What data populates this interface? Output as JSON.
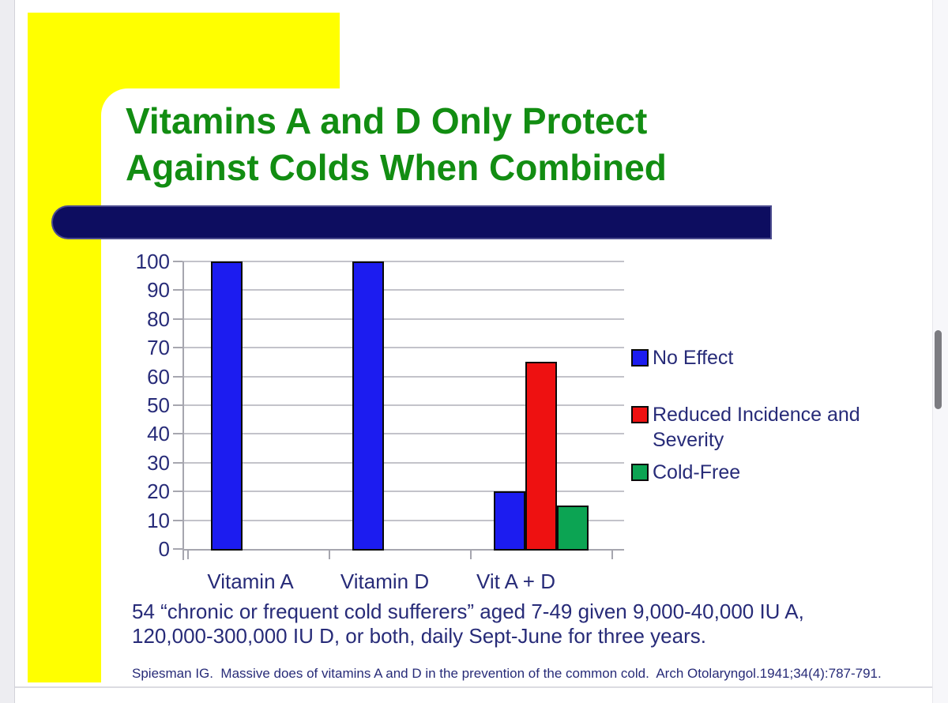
{
  "slide": {
    "title_lines": [
      "Vitamins A and D Only Protect",
      "Against Colds When Combined"
    ],
    "caption_lines": [
      "54 “chronic or frequent cold sufferers” aged 7-49 given 9,000-40,000 IU A,",
      "120,000-300,000 IU D, or both, daily Sept-June for three years."
    ],
    "citation": "Spiesman IG.  Massive does of vitamins A and D in the prevention of the common cold.  Arch Otolaryngol.1941;34(4):787-791."
  },
  "colors": {
    "title_green": "#128d12",
    "navy_text": "#272b78",
    "navy_bar": "#0d0d60",
    "accent_yellow": "#ffff00",
    "bar_blue": "#1c1cf0",
    "bar_red": "#ee1111",
    "bar_green": "#0ca453"
  },
  "chart_data": {
    "type": "bar",
    "categories": [
      "Vitamin A",
      "Vitamin D",
      "Vit A + D"
    ],
    "series": [
      {
        "name": "No Effect",
        "color": "#1c1cf0",
        "values": [
          100,
          100,
          20
        ]
      },
      {
        "name": "Reduced Incidence and Severity",
        "color": "#ee1111",
        "values": [
          null,
          null,
          65
        ]
      },
      {
        "name": "Cold-Free",
        "color": "#0ca453",
        "values": [
          null,
          null,
          15
        ]
      }
    ],
    "title": "",
    "xlabel": "",
    "ylabel": "",
    "ylim": [
      0,
      100
    ],
    "ytick_step": 10,
    "grid": true,
    "legend_position": "right",
    "bar_outline": "#000000"
  }
}
